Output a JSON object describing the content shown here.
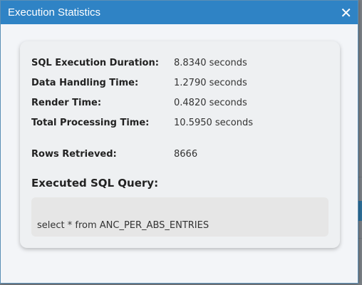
{
  "dialog": {
    "title": "Execution Statistics",
    "close_glyph": "✕",
    "close_icon": "close-icon"
  },
  "stats": [
    {
      "label": "SQL Execution Duration:",
      "value": "8.8340 seconds"
    },
    {
      "label": "Data Handling Time:",
      "value": "1.2790 seconds"
    },
    {
      "label": "Render Time:",
      "value": "0.4820 seconds"
    },
    {
      "label": "Total Processing Time:",
      "value": "10.5950 seconds"
    }
  ],
  "rows": {
    "label": "Rows Retrieved:",
    "value": "8666"
  },
  "sql": {
    "heading": "Executed SQL Query:",
    "query": "select * from ANC_PER_ABS_ENTRIES"
  },
  "colors": {
    "titlebar": "#2f83c5",
    "card": "#eef0f2"
  }
}
